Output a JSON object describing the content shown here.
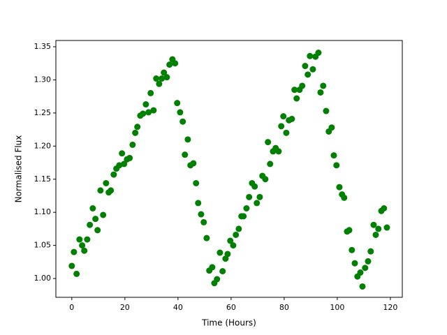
{
  "chart_data": {
    "type": "scatter",
    "x_label": "Time (Hours)",
    "y_label": "Normalised Flux",
    "color": "#008000",
    "x": [
      0,
      0.8,
      1.8,
      2.9,
      3.9,
      4.7,
      5.8,
      6.8,
      7.9,
      8.9,
      9.7,
      10.8,
      11.8,
      12.9,
      13.9,
      14.7,
      15.8,
      16.8,
      17.9,
      18.9,
      19.7,
      20.8,
      21.8,
      22.9,
      23.9,
      24.7,
      25.8,
      26.8,
      27.9,
      28.9,
      29.7,
      30.8,
      31.8,
      32.9,
      33.9,
      34.7,
      35.8,
      36.8,
      37.9,
      38.9,
      39.7,
      40.8,
      41.8,
      42.6,
      43.7,
      44.7,
      45.8,
      46.8,
      47.6,
      48.7,
      49.7,
      50.8,
      51.8,
      52.9,
      53.7,
      54.7,
      55.8,
      56.8,
      57.9,
      58.7,
      59.7,
      60.8,
      61.8,
      62.9,
      63.9,
      64.7,
      65.8,
      66.8,
      67.9,
      68.9,
      69.7,
      70.8,
      71.8,
      72.9,
      73.9,
      74.7,
      75.8,
      76.8,
      77.9,
      78.9,
      79.7,
      80.8,
      81.8,
      82.9,
      83.9,
      84.7,
      85.8,
      86.8,
      87.9,
      88.9,
      89.7,
      90.8,
      91.8,
      92.9,
      93.7,
      94.7,
      95.8,
      96.8,
      97.9,
      98.7,
      99.7,
      100.8,
      101.8,
      102.6,
      103.7,
      104.5,
      105.5,
      106.6,
      107.6,
      108.7,
      109.5,
      110.5,
      111.6,
      112.6,
      113.7,
      114.5,
      115.5,
      116.6,
      117.6,
      118.7
    ],
    "values": [
      1.019,
      1.04,
      1.007,
      1.059,
      1.05,
      1.042,
      1.059,
      1.081,
      1.106,
      1.09,
      1.073,
      1.133,
      1.096,
      1.144,
      1.13,
      1.133,
      1.157,
      1.166,
      1.171,
      1.189,
      1.173,
      1.18,
      1.182,
      1.202,
      1.22,
      1.229,
      1.246,
      1.249,
      1.263,
      1.251,
      1.28,
      1.254,
      1.302,
      1.294,
      1.302,
      1.311,
      1.304,
      1.323,
      1.331,
      1.325,
      1.265,
      1.251,
      1.237,
      1.187,
      1.21,
      1.171,
      1.174,
      1.144,
      1.114,
      1.097,
      1.085,
      1.061,
      1.012,
      1.017,
      0.993,
      0.999,
      1.039,
      1.011,
      1.03,
      1.037,
      1.057,
      1.05,
      1.066,
      1.075,
      1.094,
      1.094,
      1.106,
      1.123,
      1.144,
      1.139,
      1.114,
      1.123,
      1.155,
      1.15,
      1.206,
      1.173,
      1.192,
      1.197,
      1.192,
      1.23,
      1.245,
      1.22,
      1.239,
      1.241,
      1.285,
      1.272,
      1.285,
      1.291,
      1.321,
      1.308,
      1.336,
      1.316,
      1.335,
      1.341,
      1.281,
      1.291,
      1.253,
      1.222,
      1.228,
      1.186,
      1.171,
      1.138,
      1.127,
      1.122,
      1.071,
      1.073,
      1.043,
      1.023,
      1.003,
      1.009,
      0.988,
      1.016,
      1.026,
      1.041,
      1.081,
      1.066,
      1.075,
      1.102,
      1.106,
      1.077
    ],
    "xlim": [
      -6,
      124.5
    ],
    "xticks": [
      0,
      20,
      40,
      60,
      80,
      100,
      120
    ],
    "ylim": [
      0.9716,
      1.3595
    ],
    "yticks": [
      {
        "value": 1,
        "label": "1.00"
      },
      1.05,
      {
        "value": 1.1,
        "label": "1.10"
      },
      1.15,
      {
        "value": 1.2,
        "label": "1.20"
      },
      1.25,
      {
        "value": 1.3,
        "label": "1.30"
      },
      1.35
    ]
  }
}
